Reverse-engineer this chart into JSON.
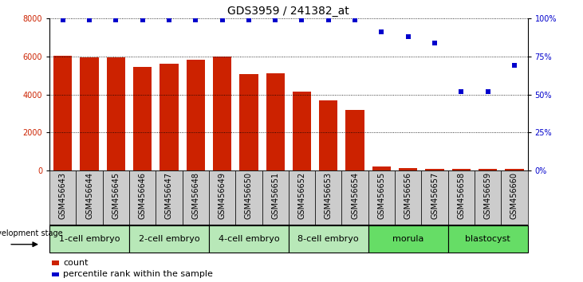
{
  "title": "GDS3959 / 241382_at",
  "samples": [
    "GSM456643",
    "GSM456644",
    "GSM456645",
    "GSM456646",
    "GSM456647",
    "GSM456648",
    "GSM456649",
    "GSM456650",
    "GSM456651",
    "GSM456652",
    "GSM456653",
    "GSM456654",
    "GSM456655",
    "GSM456656",
    "GSM456657",
    "GSM456658",
    "GSM456659",
    "GSM456660"
  ],
  "counts": [
    6020,
    5930,
    5960,
    5440,
    5620,
    5820,
    5980,
    5080,
    5110,
    4130,
    3700,
    3170,
    220,
    130,
    90,
    100,
    110,
    100
  ],
  "percentile": [
    99,
    99,
    99,
    99,
    99,
    99,
    99,
    99,
    99,
    99,
    99,
    99,
    91,
    88,
    84,
    52,
    52,
    69
  ],
  "stages": [
    {
      "label": "1-cell embryo",
      "start": 0,
      "end": 3
    },
    {
      "label": "2-cell embryo",
      "start": 3,
      "end": 6
    },
    {
      "label": "4-cell embryo",
      "start": 6,
      "end": 9
    },
    {
      "label": "8-cell embryo",
      "start": 9,
      "end": 12
    },
    {
      "label": "morula",
      "start": 12,
      "end": 15
    },
    {
      "label": "blastocyst",
      "start": 15,
      "end": 18
    }
  ],
  "bar_color": "#CC2200",
  "dot_color": "#0000CC",
  "ylim_left": [
    0,
    8000
  ],
  "ylim_right": [
    0,
    100
  ],
  "yticks_left": [
    0,
    2000,
    4000,
    6000,
    8000
  ],
  "yticks_right": [
    0,
    25,
    50,
    75,
    100
  ],
  "stage_colors": [
    "#b8e8b8",
    "#b8e8b8",
    "#b8e8b8",
    "#b8e8b8",
    "#66dd66",
    "#66dd66"
  ],
  "sample_bg_color": "#cccccc",
  "development_label": "development stage",
  "legend_count_label": "count",
  "legend_percentile_label": "percentile rank within the sample",
  "title_fontsize": 10,
  "axis_label_fontsize": 7,
  "tick_fontsize": 7,
  "stage_fontsize": 8
}
